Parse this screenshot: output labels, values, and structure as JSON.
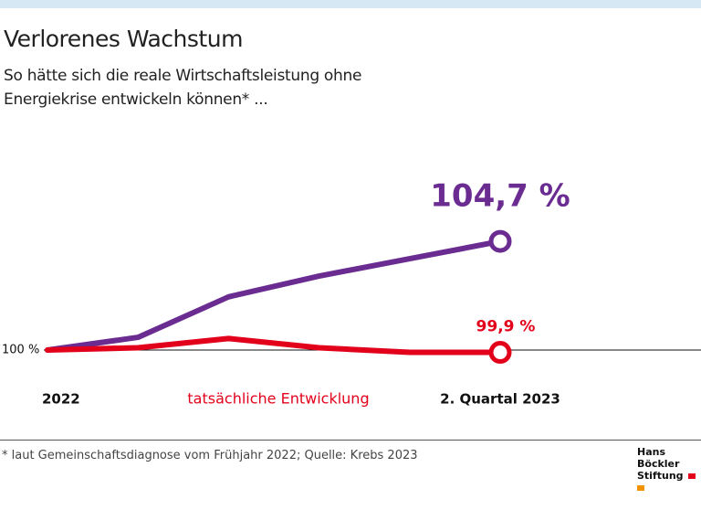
{
  "chart_data": {
    "type": "line",
    "title": "Verlorenes Wachstum",
    "subtitle": "So hätte sich die reale Wirtschaftsleistung ohne Energiekrise entwickeln können* ...",
    "footnote": "* laut Gemeinschaftsdiagnose vom Frühjahr 2022; Quelle: Krebs 2023",
    "logo": [
      "Hans Böckler",
      "Stiftung"
    ],
    "categories": [
      "2022",
      null,
      null,
      null,
      null,
      "2. Quartal 2023"
    ],
    "series": [
      {
        "color": "#6a2c91",
        "values": [
          100,
          100.55,
          102.3,
          103.2,
          103.95,
          104.7
        ],
        "value_labels": [
          null,
          null,
          null,
          null,
          null,
          "104,7 %"
        ]
      },
      {
        "name": "tatsächliche Entwicklung",
        "color": "#e3001b",
        "values": [
          100,
          100.1,
          100.5,
          100.1,
          99.9,
          99.9
        ],
        "value_labels": [
          null,
          null,
          null,
          null,
          null,
          "99,9 %"
        ]
      }
    ],
    "ylim": [
      99,
      105
    ],
    "yticks": [
      {
        "value": 100,
        "label": "100 %"
      }
    ]
  }
}
